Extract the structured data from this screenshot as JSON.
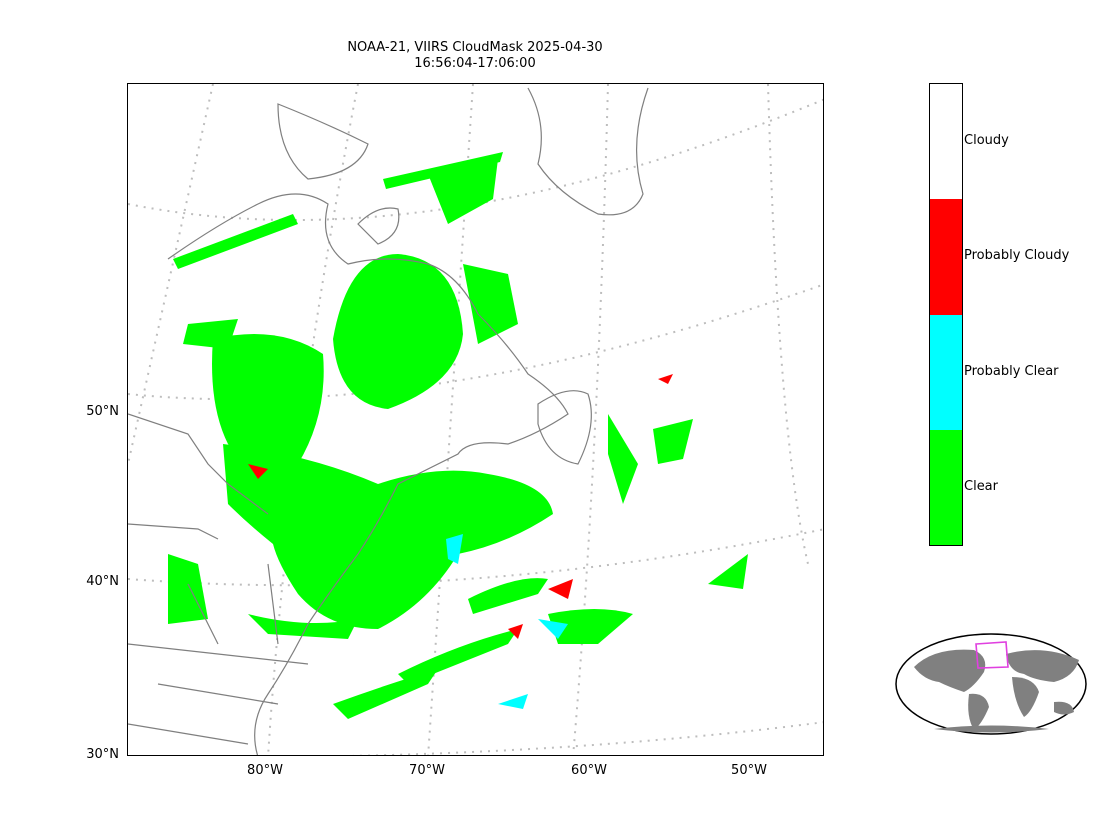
{
  "title_line1": "NOAA-21, VIIRS CloudMask 2025-04-30",
  "title_line2": "16:56:04-17:06:00",
  "lat_labels": [
    "50°N",
    "40°N",
    "30°N"
  ],
  "lon_labels": [
    "80°W",
    "70°W",
    "60°W",
    "50°W"
  ],
  "colorbar": {
    "categories": [
      {
        "label": "Cloudy",
        "color": "#ffffff"
      },
      {
        "label": "Probably Cloudy",
        "color": "#ff0000"
      },
      {
        "label": "Probably Clear",
        "color": "#00ffff"
      },
      {
        "label": "Clear",
        "color": "#00ff00"
      }
    ]
  },
  "colors": {
    "clear": "#00ff00",
    "probably_clear": "#00ffff",
    "probably_cloudy": "#ff0000",
    "coastline": "#7f7f7f",
    "graticule": "#bdbdbd",
    "land_inset": "#808080",
    "inset_box": "#e040e0"
  }
}
